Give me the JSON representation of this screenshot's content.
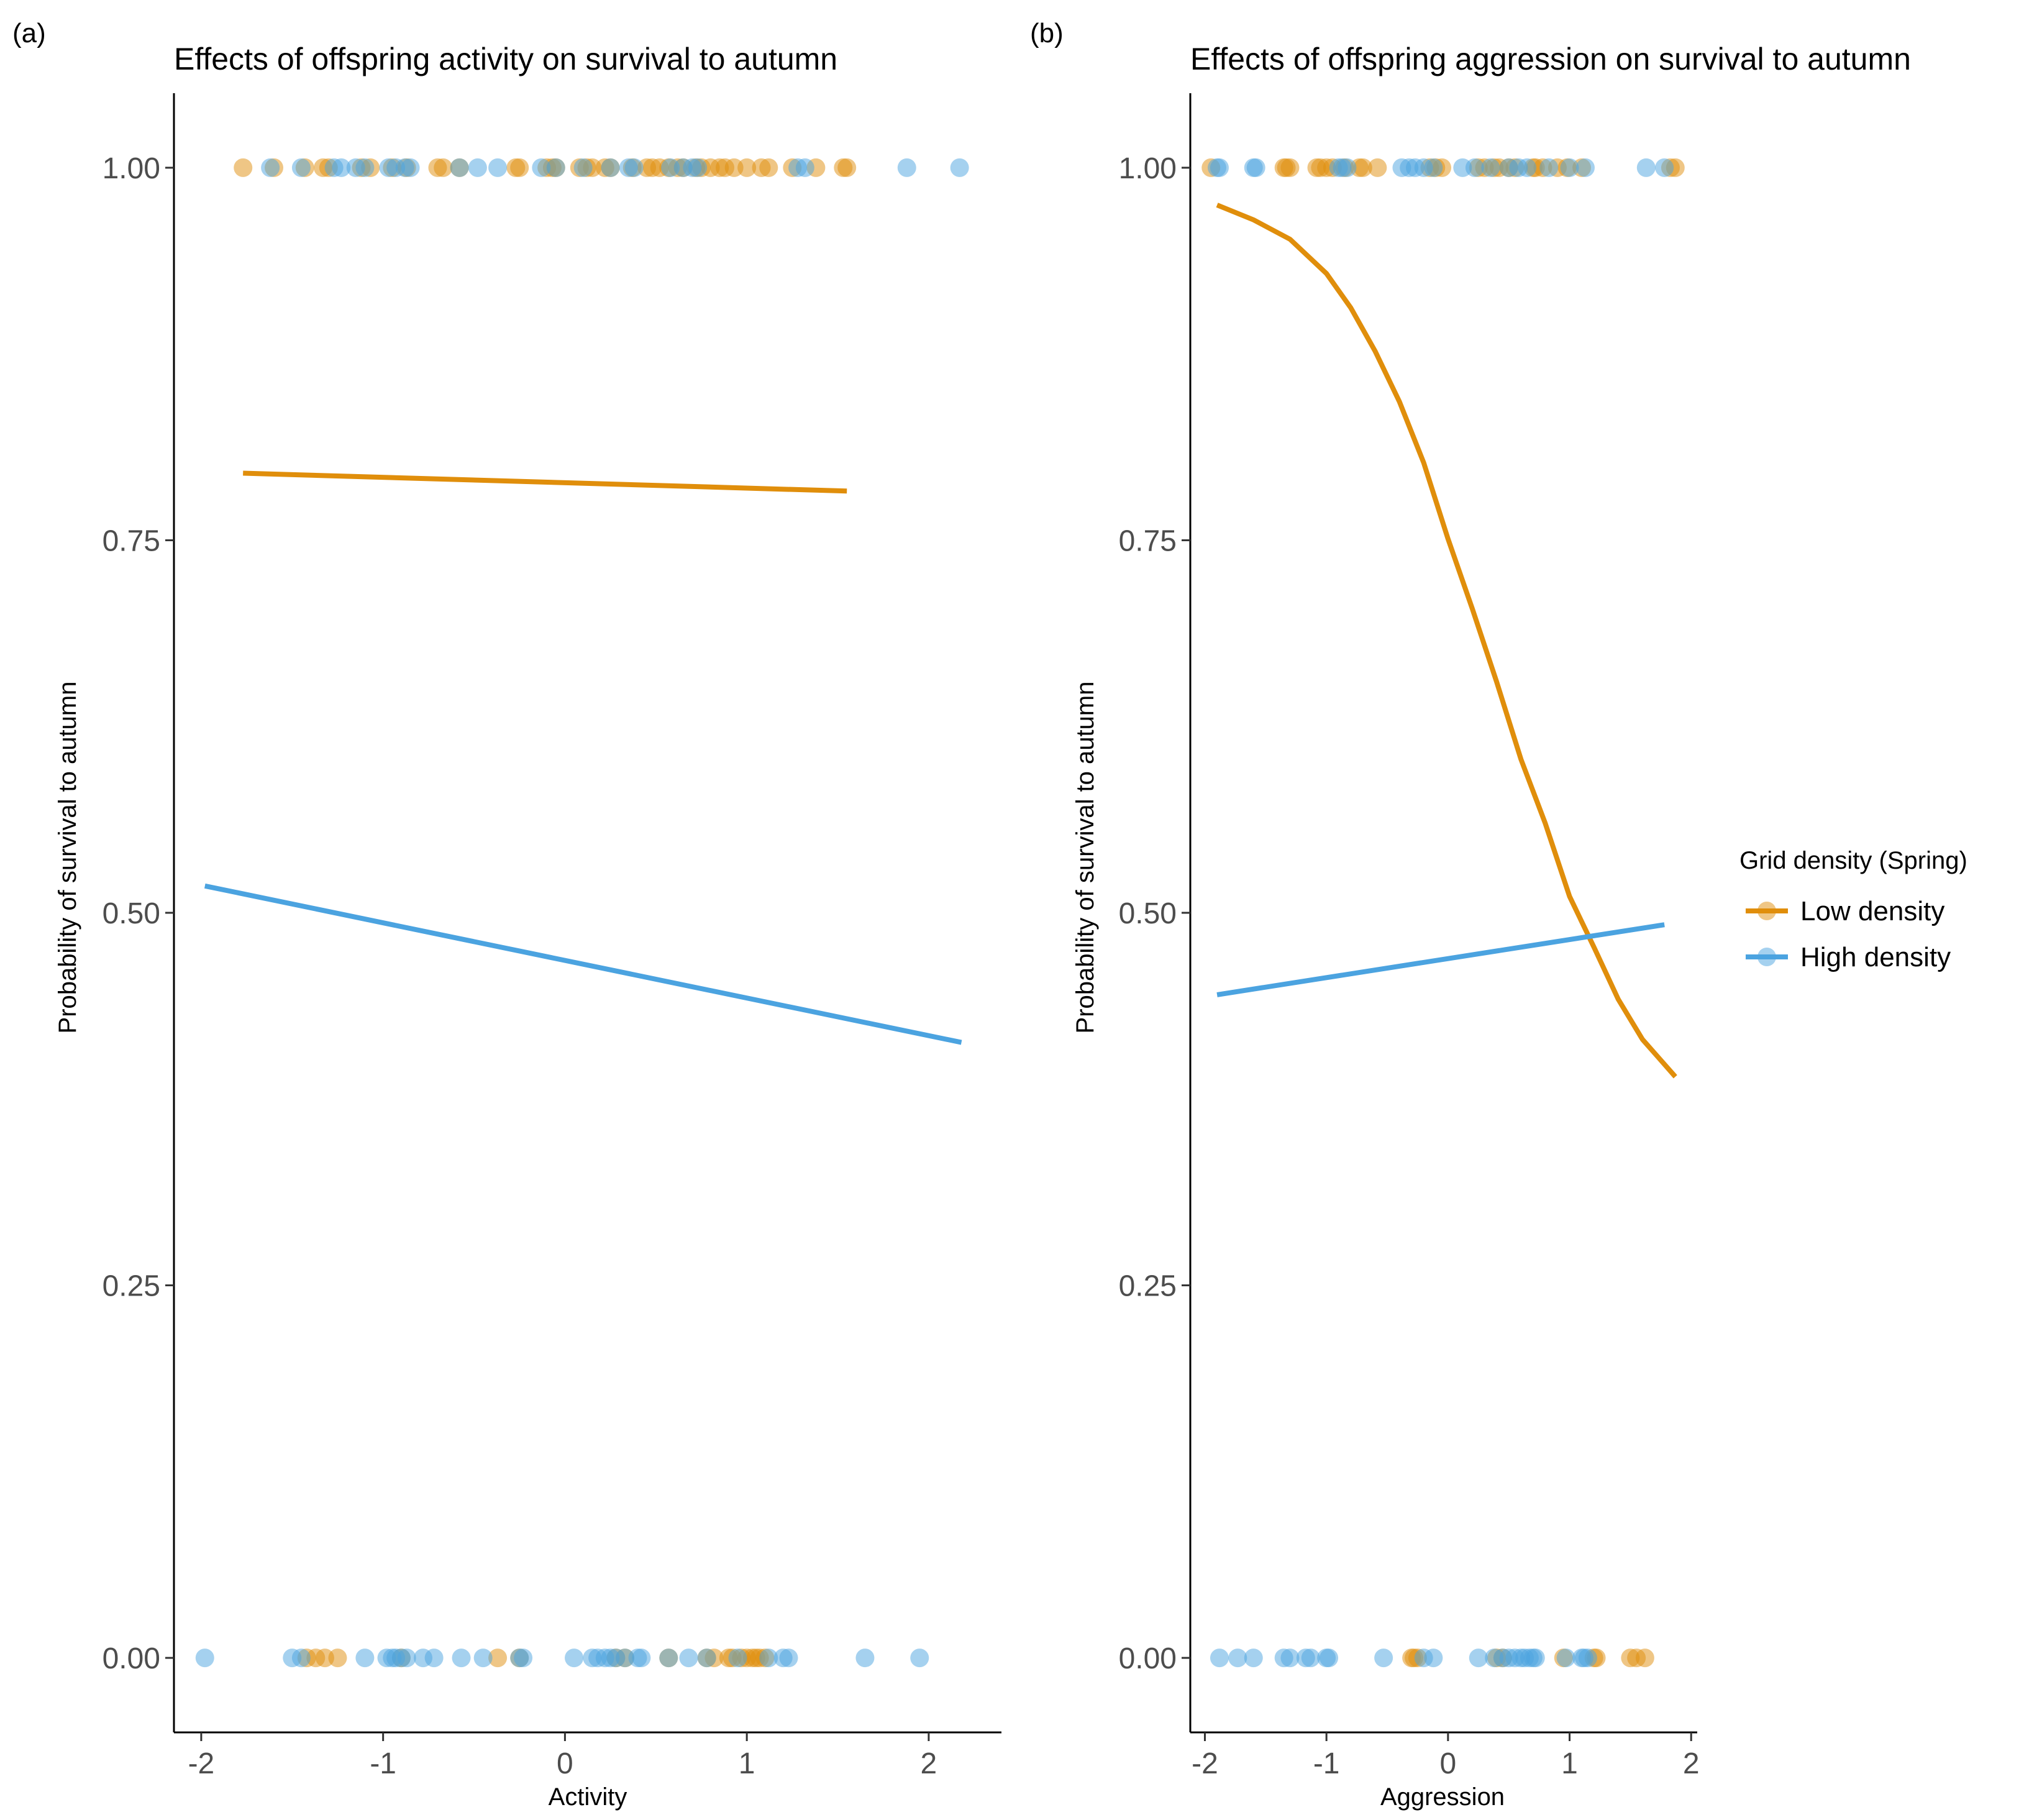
{
  "legend": {
    "title": "Grid density (Spring)",
    "items": [
      {
        "key": "low",
        "label": "Low density",
        "color": "#E08E0B"
      },
      {
        "key": "high",
        "label": "High density",
        "color": "#4BA3E0"
      }
    ]
  },
  "chart_data": [
    {
      "panel_label": "(a)",
      "type": "scatter",
      "title": "Effects of offspring activity on survival to autumn",
      "xlabel": "Activity",
      "ylabel": "Probability of survival to autumn",
      "xlim": [
        -2.15,
        2.4
      ],
      "ylim": [
        -0.05,
        1.05
      ],
      "xticks": [
        -2,
        -1,
        0,
        1,
        2
      ],
      "xtick_labels": [
        "-2",
        "-1",
        "0",
        "1",
        "2"
      ],
      "yticks": [
        0,
        0.25,
        0.5,
        0.75,
        1.0
      ],
      "ytick_labels": [
        "0.00",
        "0.25",
        "0.50",
        "0.75",
        "1.00"
      ],
      "grid": false,
      "legend_position": "right",
      "series": [
        {
          "name": "Low density",
          "color": "#E08E0B",
          "points_survived": [
            -1.77,
            -1.6,
            -1.43,
            -1.33,
            -1.3,
            -1.12,
            -1.07,
            -0.95,
            -0.87,
            -0.7,
            -0.67,
            -0.58,
            -0.27,
            -0.25,
            -0.1,
            -0.07,
            -0.05,
            0.08,
            0.12,
            0.15,
            0.22,
            0.25,
            0.37,
            0.45,
            0.48,
            0.52,
            0.57,
            0.62,
            0.65,
            0.72,
            0.75,
            0.8,
            0.85,
            0.88,
            0.93,
            1.0,
            1.08,
            1.12,
            1.25,
            1.38,
            1.53,
            1.55
          ],
          "points_died": [
            -1.42,
            -1.37,
            -1.32,
            -1.25,
            -0.9,
            -0.37,
            -0.25,
            0.28,
            0.33,
            0.57,
            0.78,
            0.82,
            0.9,
            0.92,
            0.97,
            1.0,
            1.03,
            1.05,
            1.07,
            1.1
          ],
          "fit_line": {
            "x": [
              -1.77,
              1.55
            ],
            "y": [
              0.795,
              0.783
            ]
          }
        },
        {
          "name": "High density",
          "color": "#4BA3E0",
          "points_survived": [
            -1.62,
            -1.45,
            -1.27,
            -1.23,
            -1.15,
            -1.1,
            -0.97,
            -0.93,
            -0.88,
            -0.85,
            -0.58,
            -0.48,
            -0.37,
            -0.13,
            -0.05,
            0.1,
            0.25,
            0.35,
            0.38,
            0.58,
            0.65,
            0.7,
            0.73,
            1.28,
            1.32,
            1.88,
            2.17
          ],
          "points_died": [
            -1.98,
            -1.5,
            -1.45,
            -1.1,
            -0.98,
            -0.95,
            -0.93,
            -0.9,
            -0.87,
            -0.78,
            -0.72,
            -0.57,
            -0.45,
            -0.25,
            -0.23,
            0.05,
            0.15,
            0.18,
            0.22,
            0.25,
            0.28,
            0.33,
            0.4,
            0.42,
            0.57,
            0.68,
            0.78,
            0.95,
            1.12,
            1.2,
            1.23,
            1.65,
            1.95
          ],
          "fit_line": {
            "x": [
              -1.98,
              2.18
            ],
            "y": [
              0.518,
              0.413
            ]
          }
        }
      ]
    },
    {
      "panel_label": "(b)",
      "type": "scatter",
      "title": "Effects of offspring aggression on survival to autumn",
      "xlabel": "Aggression",
      "ylabel": "Probability of survival to autumn",
      "xlim": [
        -2.12,
        2.05
      ],
      "ylim": [
        -0.05,
        1.05
      ],
      "xticks": [
        -2,
        -1,
        0,
        1,
        2
      ],
      "xtick_labels": [
        "-2",
        "-1",
        "0",
        "1",
        "2"
      ],
      "yticks": [
        0,
        0.25,
        0.5,
        0.75,
        1.0
      ],
      "ytick_labels": [
        "0.00",
        "0.25",
        "0.50",
        "0.75",
        "1.00"
      ],
      "grid": false,
      "legend_position": "right",
      "series": [
        {
          "name": "Low density",
          "color": "#E08E0B",
          "points_survived": [
            -1.95,
            -1.35,
            -1.33,
            -1.3,
            -1.08,
            -1.05,
            -1.0,
            -0.95,
            -0.85,
            -0.73,
            -0.7,
            -0.58,
            -0.15,
            -0.1,
            -0.05,
            0.25,
            0.3,
            0.38,
            0.42,
            0.5,
            0.55,
            0.7,
            0.72,
            0.78,
            0.9,
            0.98,
            1.1,
            1.83,
            1.87
          ],
          "points_died": [
            -0.3,
            -0.28,
            -0.25,
            0.4,
            0.45,
            0.95,
            1.2,
            1.22,
            1.5,
            1.55,
            1.62
          ],
          "fit_line": {
            "x": [
              -1.9,
              -1.6,
              -1.3,
              -1.0,
              -0.8,
              -0.6,
              -0.4,
              -0.2,
              0.0,
              0.2,
              0.4,
              0.6,
              0.8,
              1.0,
              1.2,
              1.4,
              1.6,
              1.87
            ],
            "y": [
              0.975,
              0.965,
              0.952,
              0.929,
              0.906,
              0.877,
              0.843,
              0.802,
              0.751,
              0.704,
              0.655,
              0.603,
              0.56,
              0.511,
              0.477,
              0.442,
              0.415,
              0.39
            ]
          }
        },
        {
          "name": "High density",
          "color": "#4BA3E0",
          "points_survived": [
            -1.9,
            -1.88,
            -1.6,
            -1.58,
            -0.9,
            -0.87,
            -0.83,
            -0.38,
            -0.32,
            -0.27,
            -0.2,
            -0.12,
            0.12,
            0.22,
            0.35,
            0.5,
            0.58,
            0.65,
            0.83,
            1.0,
            1.13,
            1.63,
            1.78
          ],
          "points_died": [
            -1.88,
            -1.73,
            -1.6,
            -1.35,
            -1.3,
            -1.17,
            -1.13,
            -1.0,
            -0.98,
            -0.53,
            -0.2,
            -0.12,
            0.25,
            0.38,
            0.45,
            0.5,
            0.55,
            0.6,
            0.63,
            0.67,
            0.7,
            0.72,
            0.97,
            1.1,
            1.12,
            1.15
          ],
          "fit_line": {
            "x": [
              -1.9,
              1.78
            ],
            "y": [
              0.445,
              0.492
            ]
          }
        }
      ]
    }
  ]
}
